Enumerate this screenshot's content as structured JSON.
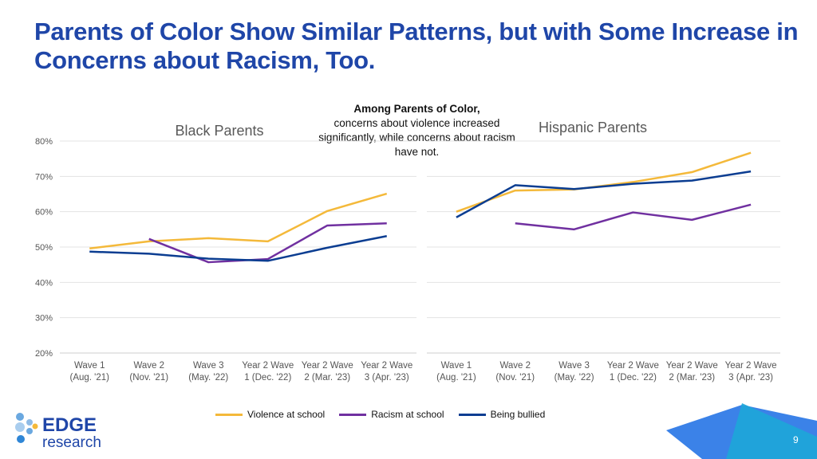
{
  "title": "Parents of Color Show Similar Patterns, but with Some Increase in Concerns about Racism, Too.",
  "note": {
    "heading": "Among Parents of Color,",
    "body": "concerns about violence increased significantly, while concerns about racism have not."
  },
  "page_number": "9",
  "logo": {
    "line1": "EDGE",
    "line2": "research"
  },
  "colors": {
    "Violence at school": "#f4b93a",
    "Racism at school": "#7030a0",
    "Being bullied": "#0b3d91",
    "title": "#1f46a8"
  },
  "chart_data": [
    {
      "type": "line",
      "title": "Black Parents",
      "categories": [
        "Wave 1 (Aug. '21)",
        "Wave 2 (Nov. '21)",
        "Wave 3 (May. '22)",
        "Year 2 Wave 1 (Dec. '22)",
        "Year 2 Wave 2 (Mar. '23)",
        "Year 2 Wave 3 (Apr. '23)"
      ],
      "ylim": [
        20,
        80
      ],
      "yticks": [
        "20%",
        "30%",
        "40%",
        "50%",
        "60%",
        "70%",
        "80%"
      ],
      "grid": true,
      "legend": "bottom",
      "series": [
        {
          "name": "Violence at school",
          "values": [
            49.6,
            51.6,
            52.5,
            51.6,
            60.2,
            65.1
          ]
        },
        {
          "name": "Racism at school",
          "values": [
            null,
            52.3,
            45.7,
            46.6,
            56.1,
            56.7
          ]
        },
        {
          "name": "Being bullied",
          "values": [
            48.7,
            48.1,
            46.7,
            46.1,
            49.8,
            53.1
          ]
        }
      ]
    },
    {
      "type": "line",
      "title": "Hispanic Parents",
      "categories": [
        "Wave 1 (Aug. '21)",
        "Wave 2 (Nov. '21)",
        "Wave 3 (May. '22)",
        "Year 2 Wave 1 (Dec. '22)",
        "Year 2 Wave 2 (Mar. '23)",
        "Year 2 Wave 3 (Apr. '23)"
      ],
      "ylim": [
        20,
        80
      ],
      "grid": true,
      "legend": "bottom",
      "series": [
        {
          "name": "Violence at school",
          "values": [
            60.0,
            66.0,
            66.3,
            68.4,
            71.2,
            76.7
          ]
        },
        {
          "name": "Racism at school",
          "values": [
            null,
            56.7,
            55.0,
            59.8,
            57.7,
            62.0
          ]
        },
        {
          "name": "Being bullied",
          "values": [
            58.4,
            67.5,
            66.4,
            67.9,
            68.8,
            71.4
          ]
        }
      ]
    }
  ]
}
